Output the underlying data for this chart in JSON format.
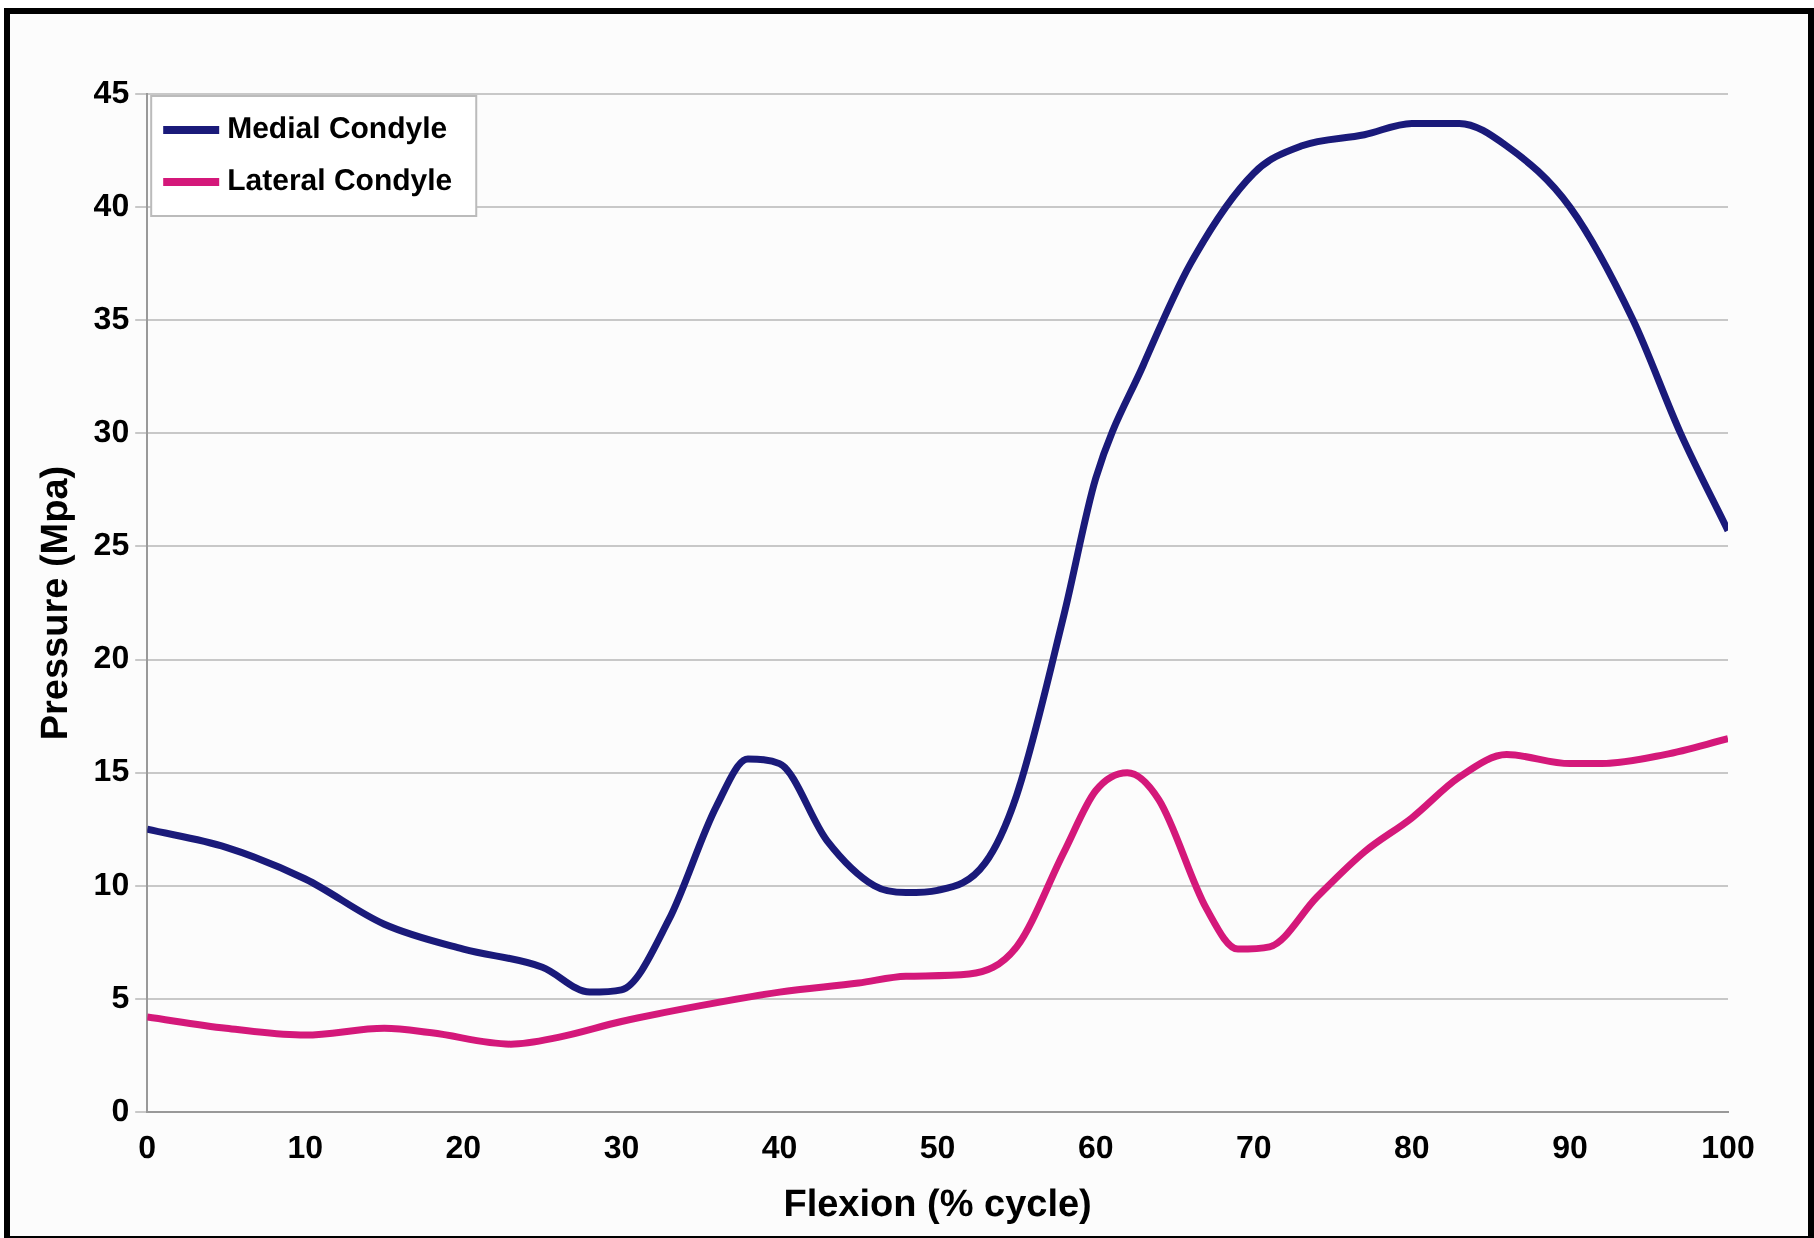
{
  "chart_data": {
    "type": "line",
    "xlabel": "Flexion (% cycle)",
    "ylabel": "Pressure (Mpa)",
    "xlim": [
      0,
      100
    ],
    "xticks": [
      0,
      10,
      20,
      30,
      40,
      50,
      60,
      70,
      80,
      90,
      100
    ],
    "ylim": [
      0,
      45
    ],
    "yticks": [
      0,
      5,
      10,
      15,
      20,
      25,
      30,
      35,
      40,
      45
    ],
    "grid": "y",
    "legend": "top left",
    "marker": "none",
    "line_style": "solid",
    "series": [
      {
        "name": "Medial Condyle",
        "color": "#1a1a7a",
        "x": [
          0,
          5,
          10,
          15,
          20,
          25,
          28,
          30,
          33,
          36,
          38,
          40,
          43,
          46,
          48,
          50,
          53,
          55,
          58,
          60,
          63,
          66,
          70,
          73,
          77,
          80,
          83,
          86,
          90,
          94,
          97,
          100
        ],
        "values": [
          12.5,
          11.7,
          10.3,
          8.3,
          7.2,
          6.4,
          5.3,
          5.4,
          8.5,
          13.5,
          15.6,
          15.4,
          12,
          10,
          9.7,
          9.8,
          11,
          14,
          22,
          28,
          33,
          37.5,
          41.5,
          42.7,
          43.2,
          43.7,
          43.7,
          42.7,
          40,
          35,
          30,
          25.7
        ]
      },
      {
        "name": "Lateral Condyle",
        "color": "#d4187a",
        "x": [
          0,
          5,
          10,
          15,
          18,
          23,
          26,
          30,
          35,
          40,
          45,
          48,
          52,
          55,
          58,
          60,
          62,
          64,
          67,
          69,
          71,
          74,
          77,
          80,
          83,
          86,
          90,
          92,
          96,
          100
        ],
        "values": [
          4.2,
          3.7,
          3.4,
          3.7,
          3.5,
          3.0,
          3.3,
          4.0,
          4.7,
          5.3,
          5.7,
          6.0,
          6.1,
          7.3,
          11.5,
          14.2,
          15.0,
          13.8,
          9,
          7.2,
          7.3,
          9.5,
          11.5,
          13,
          14.8,
          15.8,
          15.4,
          15.4,
          15.8,
          16.5
        ]
      }
    ]
  }
}
